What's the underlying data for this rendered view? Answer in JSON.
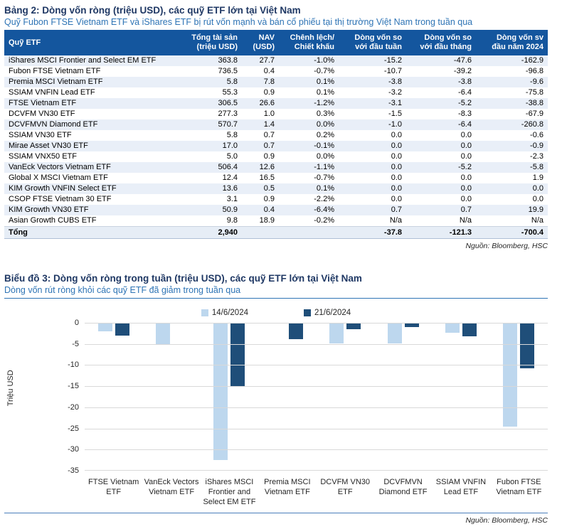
{
  "table_section": {
    "title": "Bảng 2: Dòng vốn ròng (triệu USD), các quỹ ETF lớn tại Việt Nam",
    "subtitle": "Quỹ Fubon FTSE Vietnam ETF và iShares ETF bị rút vốn mạnh và bán cổ phiếu tại thị trường Việt Nam trong tuần qua",
    "columns": [
      "Quỹ ETF",
      "Tổng tài sản\n(triệu USD)",
      "NAV\n(USD)",
      "Chênh lệch/\nChiết khấu",
      "Dòng vốn so\nvới đầu tuần",
      "Dòng vốn so\nvới đầu tháng",
      "Dòng vốn sv\nđầu năm 2024"
    ],
    "rows": [
      {
        "name": "iShares MSCI Frontier and Select EM ETF",
        "assets": "363.8",
        "nav": "27.7",
        "premium": "-1.0%",
        "week": "-15.2",
        "month": "-47.6",
        "ytd": "-162.9"
      },
      {
        "name": "Fubon FTSE Vietnam ETF",
        "assets": "736.5",
        "nav": "0.4",
        "premium": "-0.7%",
        "week": "-10.7",
        "month": "-39.2",
        "ytd": "-96.8"
      },
      {
        "name": "Premia MSCI Vietnam ETF",
        "assets": "5.8",
        "nav": "7.8",
        "premium": "0.1%",
        "week": "-3.8",
        "month": "-3.8",
        "ytd": "-9.6"
      },
      {
        "name": "SSIAM VNFIN Lead ETF",
        "assets": "55.3",
        "nav": "0.9",
        "premium": "0.1%",
        "week": "-3.2",
        "month": "-6.4",
        "ytd": "-75.8"
      },
      {
        "name": "FTSE Vietnam ETF",
        "assets": "306.5",
        "nav": "26.6",
        "premium": "-1.2%",
        "week": "-3.1",
        "month": "-5.2",
        "ytd": "-38.8"
      },
      {
        "name": "DCVFM VN30 ETF",
        "assets": "277.3",
        "nav": "1.0",
        "premium": "0.3%",
        "week": "-1.5",
        "month": "-8.3",
        "ytd": "-67.9"
      },
      {
        "name": "DCVFMVN Diamond ETF",
        "assets": "570.7",
        "nav": "1.4",
        "premium": "0.0%",
        "week": "-1.0",
        "month": "-6.4",
        "ytd": "-260.8"
      },
      {
        "name": "SSIAM VN30 ETF",
        "assets": "5.8",
        "nav": "0.7",
        "premium": "0.2%",
        "week": "0.0",
        "month": "0.0",
        "ytd": "-0.6"
      },
      {
        "name": "Mirae Asset VN30 ETF",
        "assets": "17.0",
        "nav": "0.7",
        "premium": "-0.1%",
        "week": "0.0",
        "month": "0.0",
        "ytd": "-0.9"
      },
      {
        "name": "SSIAM VNX50 ETF",
        "assets": "5.0",
        "nav": "0.9",
        "premium": "0.0%",
        "week": "0.0",
        "month": "0.0",
        "ytd": "-2.3"
      },
      {
        "name": "VanEck Vectors Vietnam ETF",
        "assets": "506.4",
        "nav": "12.6",
        "premium": "-1.1%",
        "week": "0.0",
        "month": "-5.2",
        "ytd": "-5.8"
      },
      {
        "name": "Global X MSCI Vietnam ETF",
        "assets": "12.4",
        "nav": "16.5",
        "premium": "-0.7%",
        "week": "0.0",
        "month": "0.0",
        "ytd": "1.9"
      },
      {
        "name": "KIM Growth VNFIN Select ETF",
        "assets": "13.6",
        "nav": "0.5",
        "premium": "0.1%",
        "week": "0.0",
        "month": "0.0",
        "ytd": "0.0"
      },
      {
        "name": "CSOP FTSE Vietnam 30 ETF",
        "assets": "3.1",
        "nav": "0.9",
        "premium": "-2.2%",
        "week": "0.0",
        "month": "0.0",
        "ytd": "0.0"
      },
      {
        "name": "KIM Growth VN30 ETF",
        "assets": "50.9",
        "nav": "0.4",
        "premium": "-6.4%",
        "week": "0.7",
        "month": "0.7",
        "ytd": "19.9"
      },
      {
        "name": "Asian Growth CUBS ETF",
        "assets": "9.8",
        "nav": "18.9",
        "premium": "-0.2%",
        "week": "N/a",
        "month": "N/a",
        "ytd": "N/a"
      }
    ],
    "total": {
      "label": "Tổng",
      "assets": "2,940",
      "nav": "",
      "premium": "",
      "week": "-37.8",
      "month": "-121.3",
      "ytd": "-700.4"
    },
    "source": "Nguồn: Bloomberg, HSC"
  },
  "chart_section": {
    "title": "Biểu đồ 3: Dòng vốn ròng trong tuần (triệu USD), các quỹ ETF lớn tại Việt Nam",
    "subtitle": "Dòng vốn rút ròng khỏi các quỹ ETF đã giảm trong tuần qua",
    "source": "Nguồn: Bloomberg, HSC"
  },
  "chart_data": {
    "type": "bar",
    "categories": [
      "FTSE Vietnam\nETF",
      "VanEck Vectors\nVietnam ETF",
      "iShares MSCI\nFrontier and\nSelect EM ETF",
      "Premia MSCI\nVietnam ETF",
      "DCVFM VN30\nETF",
      "DCVFMVN\nDiamond ETF",
      "SSIAM VNFIN\nLead ETF",
      "Fubon FTSE\nVietnam ETF"
    ],
    "series": [
      {
        "name": "14/6/2024",
        "color": "#BDD7EE",
        "values": [
          -2.1,
          -5.2,
          -32.4,
          0.0,
          -4.9,
          -4.9,
          -2.4,
          -24.5
        ]
      },
      {
        "name": "21/6/2024",
        "color": "#1F4E79",
        "values": [
          -3.1,
          0.0,
          -15.2,
          -3.8,
          -1.5,
          -1.0,
          -3.2,
          -10.7
        ]
      }
    ],
    "title": "Dòng vốn ròng trong tuần (triệu USD), các quỹ ETF lớn tại Việt Nam",
    "xlabel": "",
    "ylabel": "Triệu USD",
    "ylim": [
      -35,
      0
    ],
    "yticks": [
      0,
      -5,
      -10,
      -15,
      -20,
      -25,
      -30,
      -35
    ],
    "grid": true,
    "legend_position": "top"
  },
  "colors": {
    "header_bg": "#14569E",
    "alt_row_bg": "#E9EFF8",
    "title_navy": "#1F3864",
    "subtitle_blue": "#2E74B5",
    "bar_light": "#BDD7EE",
    "bar_dark": "#1F4E79",
    "gridline": "#D9D9D9"
  }
}
